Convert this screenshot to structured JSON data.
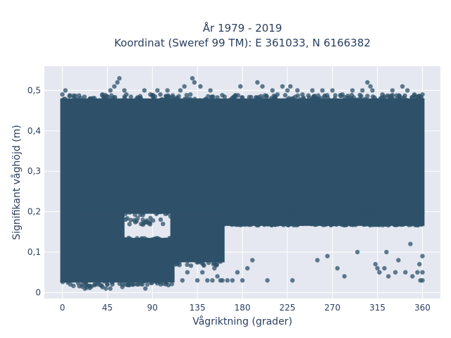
{
  "chart_data": {
    "type": "scatter",
    "title": "År 1979 - 2019",
    "subtitle": "Koordinat (Sweref 99 TM): E 361033, N 6166382",
    "xlabel": "Vågriktning (grader)",
    "ylabel": "Signifikant våghöjd (m)",
    "xlim": [
      -18,
      378
    ],
    "ylim": [
      -0.015,
      0.56
    ],
    "x_ticks": [
      0,
      45,
      90,
      135,
      180,
      225,
      270,
      315,
      360
    ],
    "x_tick_labels": [
      "0",
      "45",
      "90",
      "135",
      "180",
      "225",
      "270",
      "315",
      "360"
    ],
    "y_ticks": [
      0,
      0.1,
      0.2,
      0.3,
      0.4,
      0.5
    ],
    "y_tick_labels": [
      "0",
      "0,1",
      "0,2",
      "0,3",
      "0,4",
      "0,5"
    ],
    "grid": true,
    "legend": "none",
    "marker_color": "#2e5169",
    "plot_background": "#e5e8f0",
    "dense_regions": [
      {
        "x_range": [
          0,
          360
        ],
        "y_range": [
          0.2,
          0.475
        ]
      },
      {
        "x_range": [
          0,
          60
        ],
        "y_range": [
          0.03,
          0.2
        ]
      },
      {
        "x_range": [
          60,
          110
        ],
        "y_range": [
          0.03,
          0.13
        ]
      },
      {
        "x_range": [
          110,
          160
        ],
        "y_range": [
          0.08,
          0.2
        ]
      },
      {
        "x_range": [
          160,
          360
        ],
        "y_range": [
          0.17,
          0.2
        ]
      }
    ],
    "points": [
      [
        0,
        0.03
      ],
      [
        2,
        0.05
      ],
      [
        4,
        0.04
      ],
      [
        6,
        0.03
      ],
      [
        3,
        0.5
      ],
      [
        0,
        0.49
      ],
      [
        8,
        0.02
      ],
      [
        10,
        0.03
      ],
      [
        12,
        0.06
      ],
      [
        15,
        0.04
      ],
      [
        20,
        0.02
      ],
      [
        25,
        0.03
      ],
      [
        28,
        0.48
      ],
      [
        35,
        0.02
      ],
      [
        40,
        0.49
      ],
      [
        45,
        0.02
      ],
      [
        48,
        0.5
      ],
      [
        50,
        0.02
      ],
      [
        52,
        0.51
      ],
      [
        55,
        0.52
      ],
      [
        57,
        0.53
      ],
      [
        60,
        0.02
      ],
      [
        62,
        0.5
      ],
      [
        64,
        0.49
      ],
      [
        70,
        0.02
      ],
      [
        75,
        0.02
      ],
      [
        80,
        0.02
      ],
      [
        82,
        0.5
      ],
      [
        83,
        0.01
      ],
      [
        85,
        0.02
      ],
      [
        88,
        0.49
      ],
      [
        90,
        0.03
      ],
      [
        92,
        0.04
      ],
      [
        95,
        0.5
      ],
      [
        98,
        0.49
      ],
      [
        100,
        0.05
      ],
      [
        105,
        0.5
      ],
      [
        108,
        0.06
      ],
      [
        110,
        0.04
      ],
      [
        115,
        0.07
      ],
      [
        118,
        0.5
      ],
      [
        120,
        0.03
      ],
      [
        122,
        0.51
      ],
      [
        125,
        0.05
      ],
      [
        128,
        0.49
      ],
      [
        130,
        0.53
      ],
      [
        132,
        0.52
      ],
      [
        135,
        0.03
      ],
      [
        138,
        0.51
      ],
      [
        140,
        0.05
      ],
      [
        145,
        0.03
      ],
      [
        148,
        0.5
      ],
      [
        150,
        0.03
      ],
      [
        152,
        0.06
      ],
      [
        155,
        0.04
      ],
      [
        158,
        0.03
      ],
      [
        160,
        0.03
      ],
      [
        165,
        0.03
      ],
      [
        170,
        0.03
      ],
      [
        175,
        0.05
      ],
      [
        178,
        0.51
      ],
      [
        180,
        0.03
      ],
      [
        185,
        0.06
      ],
      [
        190,
        0.08
      ],
      [
        195,
        0.52
      ],
      [
        200,
        0.51
      ],
      [
        205,
        0.03
      ],
      [
        210,
        0.5
      ],
      [
        215,
        0.49
      ],
      [
        220,
        0.51
      ],
      [
        225,
        0.5
      ],
      [
        228,
        0.51
      ],
      [
        230,
        0.03
      ],
      [
        235,
        0.5
      ],
      [
        240,
        0.49
      ],
      [
        250,
        0.5
      ],
      [
        255,
        0.08
      ],
      [
        260,
        0.5
      ],
      [
        265,
        0.09
      ],
      [
        270,
        0.5
      ],
      [
        275,
        0.06
      ],
      [
        280,
        0.49
      ],
      [
        282,
        0.04
      ],
      [
        290,
        0.5
      ],
      [
        295,
        0.1
      ],
      [
        300,
        0.5
      ],
      [
        305,
        0.52
      ],
      [
        308,
        0.51
      ],
      [
        310,
        0.5
      ],
      [
        313,
        0.07
      ],
      [
        315,
        0.06
      ],
      [
        317,
        0.05
      ],
      [
        320,
        0.49
      ],
      [
        322,
        0.06
      ],
      [
        324,
        0.1
      ],
      [
        326,
        0.04
      ],
      [
        330,
        0.5
      ],
      [
        333,
        0.05
      ],
      [
        336,
        0.08
      ],
      [
        340,
        0.51
      ],
      [
        343,
        0.05
      ],
      [
        345,
        0.5
      ],
      [
        348,
        0.12
      ],
      [
        350,
        0.04
      ],
      [
        352,
        0.49
      ],
      [
        355,
        0.05
      ],
      [
        357,
        0.07
      ],
      [
        358,
        0.03
      ],
      [
        360,
        0.03
      ],
      [
        360,
        0.09
      ],
      [
        360,
        0.05
      ],
      [
        360,
        0.49
      ]
    ]
  }
}
